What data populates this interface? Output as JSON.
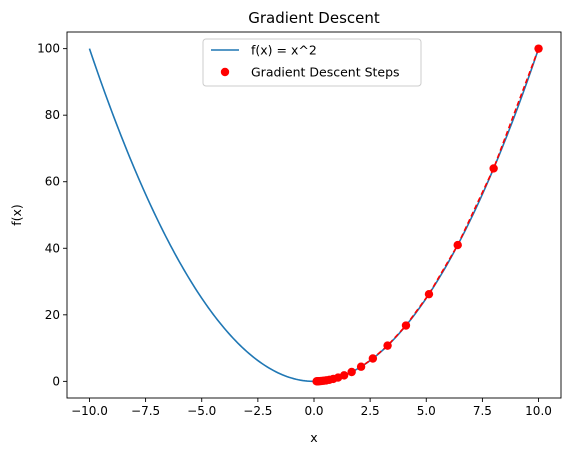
{
  "chart_data": {
    "type": "line",
    "title": "Gradient Descent",
    "xlabel": "x",
    "ylabel": "f(x)",
    "xlim": [
      -11,
      11
    ],
    "ylim": [
      -5,
      105
    ],
    "xticks": [
      -10.0,
      -7.5,
      -5.0,
      -2.5,
      0.0,
      2.5,
      5.0,
      7.5,
      10.0
    ],
    "xtick_labels": [
      "−10.0",
      "−7.5",
      "−5.0",
      "−2.5",
      "0.0",
      "2.5",
      "5.0",
      "7.5",
      "10.0"
    ],
    "yticks": [
      0,
      20,
      40,
      60,
      80,
      100
    ],
    "ytick_labels": [
      "0",
      "20",
      "40",
      "60",
      "80",
      "100"
    ],
    "grid": false,
    "legend_position": "upper center",
    "legend": [
      {
        "label": "f(x) = x^2",
        "kind": "line"
      },
      {
        "label": "Gradient Descent Steps",
        "kind": "scatter"
      }
    ],
    "series": [
      {
        "name": "f(x) = x^2",
        "kind": "line",
        "color": "#1f77b4",
        "function": "x^2",
        "x_range": [
          -10,
          10
        ]
      },
      {
        "name": "Gradient Descent Steps",
        "kind": "scatter",
        "color": "#ff0000",
        "connect_style": "dashed",
        "x": [
          10.0,
          8.0,
          6.4,
          5.12,
          4.096,
          3.2768,
          2.6214,
          2.0972,
          1.6777,
          1.3422,
          1.0737,
          0.859,
          0.6872,
          0.5498,
          0.4398,
          0.3518,
          0.2815,
          0.2252,
          0.1801,
          0.1441,
          0.1153
        ],
        "y": [
          100.0,
          64.0,
          40.96,
          26.21,
          16.78,
          10.74,
          6.87,
          4.4,
          2.81,
          1.8,
          1.15,
          0.74,
          0.47,
          0.3,
          0.19,
          0.12,
          0.08,
          0.05,
          0.03,
          0.02,
          0.01
        ]
      }
    ]
  }
}
